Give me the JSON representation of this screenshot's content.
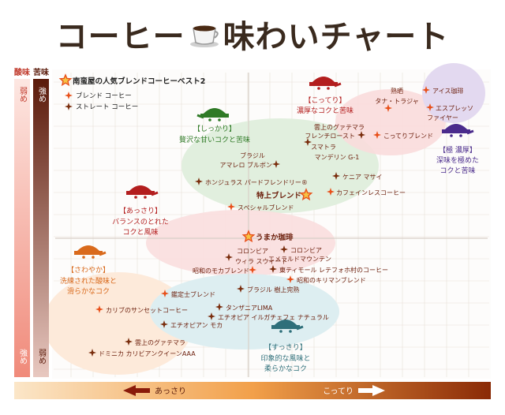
{
  "title_left": "コーヒー",
  "title_right": "味わいチャート",
  "axes": {
    "acidity_label": "酸味",
    "bitterness_label": "苦味",
    "strong": "強め",
    "weak": "弱め",
    "x_left": "あっさり",
    "x_right": "こってり"
  },
  "legend": {
    "title": "南蛮屋の人気ブレンドコーヒーベスト2",
    "blend": "ブレンド コーヒー",
    "straight": "ストレート コーヒー"
  },
  "colors": {
    "orange_star": "#e8501a",
    "brown_star": "#7a2e0e",
    "text": "#6b1d0a",
    "grid": "#e8e0d8"
  },
  "categories": [
    {
      "id": "shikkari",
      "label": "【しっかり】",
      "desc1": "贅沢な甘いコクと苦味",
      "color": "#2f7a26",
      "halo": "#d6ecd3"
    },
    {
      "id": "kotteri",
      "label": "【こってり】",
      "desc1": "濃厚なコクと苦味",
      "color": "#b31e1e",
      "halo": "#f6d6d6"
    },
    {
      "id": "gokunou",
      "label": "【極 濃厚】",
      "desc1": "深味を極めた",
      "desc2": "コクと苦味",
      "color": "#4a2b8c",
      "halo": "#e2d7f0"
    },
    {
      "id": "assari",
      "label": "【あっさり】",
      "desc1": "バランスのとれた",
      "desc2": "コクと風味",
      "color": "#b31e1e",
      "halo": "#f6d6d6"
    },
    {
      "id": "sawayaka",
      "label": "【さわやか】",
      "desc1": "洗練された酸味と",
      "desc2": "滑らかなコク",
      "color": "#d96a1c",
      "halo": "#fbe3cf"
    },
    {
      "id": "sukkiri",
      "label": "【すっきり】",
      "desc1": "印象的な風味と",
      "desc2": "柔らかなコク",
      "color": "#2e6f7a",
      "halo": "#d5ebee"
    }
  ],
  "chart_data": {
    "type": "scatter",
    "title": "コーヒー味わいチャート",
    "x_axis": {
      "label": "あっさり ← → こってり",
      "left": "あっさり",
      "right": "こってり"
    },
    "y_axis": {
      "label": "酸味 / 苦味",
      "top": "苦味 強め / 酸味 弱め",
      "bottom": "苦味 弱め / 酸味 強め"
    },
    "series": [
      {
        "name": "ブレンド コーヒー",
        "points": [
          {
            "label": "特上ブレンド",
            "x": 0.62,
            "y": 0.62
          },
          {
            "label": "うまか珈琲",
            "x": 0.44,
            "y": 0.47
          },
          {
            "label": "アイス珈琲",
            "x": 0.92,
            "y": 0.95
          },
          {
            "label": "エスプレッソ ファイヤー",
            "x": 0.92,
            "y": 0.86
          },
          {
            "label": "熟晒 タナ・トラジャ",
            "x": 0.8,
            "y": 0.9
          },
          {
            "label": "こってりブレンド",
            "x": 0.77,
            "y": 0.78
          },
          {
            "label": "カフェインレスコーヒー",
            "x": 0.66,
            "y": 0.62
          },
          {
            "label": "スペシャルブレンド",
            "x": 0.45,
            "y": 0.57
          },
          {
            "label": "昭和のモカブレンド",
            "x": 0.49,
            "y": 0.38
          },
          {
            "label": "昭和のキリマンブレンド",
            "x": 0.59,
            "y": 0.34
          },
          {
            "label": "鑑定士ブレンド",
            "x": 0.32,
            "y": 0.29
          },
          {
            "label": "カリブのサンセットコーヒー",
            "x": 0.19,
            "y": 0.23
          }
        ]
      },
      {
        "name": "ストレート コーヒー",
        "points": [
          {
            "label": "雲上のグァテマラ フレンチロースト",
            "x": 0.73,
            "y": 0.8
          },
          {
            "label": "スマトラ マンデリン G-1",
            "x": 0.62,
            "y": 0.75
          },
          {
            "label": "ブラジル アマレロ ブルボン",
            "x": 0.52,
            "y": 0.72
          },
          {
            "label": "ホンジュラス パードフレンドリー®",
            "x": 0.39,
            "y": 0.67
          },
          {
            "label": "ケニア マサイ",
            "x": 0.69,
            "y": 0.67
          },
          {
            "label": "コロンビア ウィラ スウィート",
            "x": 0.45,
            "y": 0.41
          },
          {
            "label": "コロンビア エメラルドマウンテン",
            "x": 0.57,
            "y": 0.43
          },
          {
            "label": "東ティモール レテフォホ村のコーヒー",
            "x": 0.55,
            "y": 0.36
          },
          {
            "label": "ブラジル 樹上完熟",
            "x": 0.49,
            "y": 0.31
          },
          {
            "label": "タンザニアLIMA",
            "x": 0.41,
            "y": 0.25
          },
          {
            "label": "エチオピア イルガチェフェ ナチュラル",
            "x": 0.4,
            "y": 0.21
          },
          {
            "label": "エチオピアン モカ",
            "x": 0.33,
            "y": 0.18
          },
          {
            "label": "雲上のグァテマラ",
            "x": 0.24,
            "y": 0.13
          },
          {
            "label": "ドミニカ カリビアンクイーンAAA",
            "x": 0.18,
            "y": 0.08
          }
        ]
      }
    ],
    "labels": [
      {
        "text": "特上ブレンド",
        "series": "blend"
      },
      {
        "text": "うまか珈琲",
        "series": "blend"
      },
      {
        "text": "アイス珈琲",
        "series": "blend"
      },
      {
        "text": "エスプレッソ",
        "series": "blend"
      },
      {
        "text": "ファイヤー",
        "series": "blend"
      },
      {
        "text": "熟晒",
        "series": "blend"
      },
      {
        "text": "タナ・トラジャ",
        "series": "blend"
      },
      {
        "text": "こってりブレンド",
        "series": "blend"
      },
      {
        "text": "カフェインレスコーヒー",
        "series": "blend"
      },
      {
        "text": "スペシャルブレンド",
        "series": "blend"
      },
      {
        "text": "昭和のモカブレンド",
        "series": "blend"
      },
      {
        "text": "昭和のキリマンブレンド",
        "series": "blend"
      },
      {
        "text": "鑑定士ブレンド",
        "series": "blend"
      },
      {
        "text": "カリブのサンセットコーヒー",
        "series": "blend"
      },
      {
        "text": "雲上のグァテマラ",
        "series": "straight"
      },
      {
        "text": "フレンチロースト",
        "series": "straight"
      },
      {
        "text": "スマトラ",
        "series": "straight"
      },
      {
        "text": "マンデリン G-1",
        "series": "straight"
      },
      {
        "text": "ブラジル",
        "series": "straight"
      },
      {
        "text": "アマレロ ブルボン",
        "series": "straight"
      },
      {
        "text": "ホンジュラス パードフレンドリー®",
        "series": "straight"
      },
      {
        "text": "ケニア マサイ",
        "series": "straight"
      },
      {
        "text": "コロンビア",
        "series": "straight"
      },
      {
        "text": "ウィラ スウィート",
        "series": "straight"
      },
      {
        "text": "コロンビア",
        "series": "straight"
      },
      {
        "text": "エメラルドマウンテン",
        "series": "straight"
      },
      {
        "text": "東ティモール レテフォホ村のコーヒー",
        "series": "straight"
      },
      {
        "text": "ブラジル 樹上完熟",
        "series": "straight"
      },
      {
        "text": "タンザニアLIMA",
        "series": "straight"
      },
      {
        "text": "エチオピア イルガチェフェ ナチュラル",
        "series": "straight"
      },
      {
        "text": "エチオピアン モカ",
        "series": "straight"
      },
      {
        "text": "雲上のグァテマラ",
        "series": "straight"
      },
      {
        "text": "ドミニカ カリビアンクイーンAAA",
        "series": "straight"
      }
    ]
  }
}
